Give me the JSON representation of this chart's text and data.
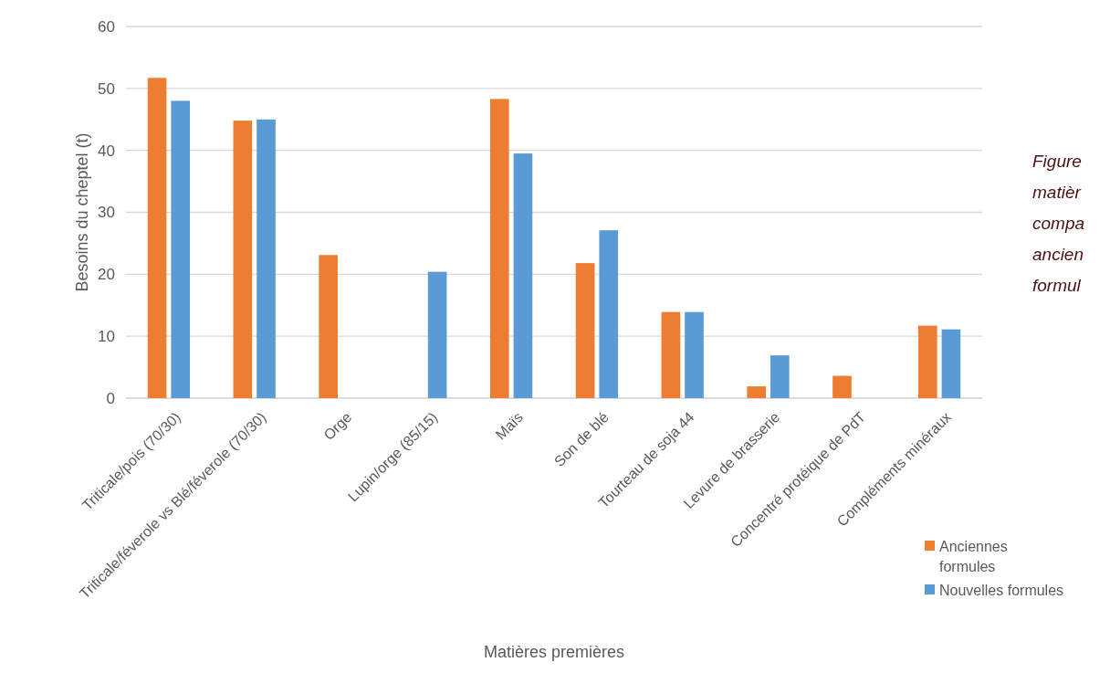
{
  "chart_data": {
    "type": "bar",
    "xlabel": "Matières premières",
    "ylabel": "Besoins du cheptel (t)",
    "categories": [
      "Triticale/pois (70/30)",
      "Triticale/féverole vs Blé/féverole (70/30)",
      "Orge",
      "Lupin/orge (85/15)",
      "Maïs",
      "Son de blé",
      "Tourteau de soja 44",
      "Levure de brasserie",
      "Concentré protéique de PdT",
      "Compléments minéraux"
    ],
    "series": [
      {
        "name": "Anciennes formules",
        "color": "#ed7d31",
        "values": [
          51.7,
          44.8,
          23.1,
          null,
          48.3,
          21.8,
          13.9,
          1.9,
          3.6,
          11.7
        ]
      },
      {
        "name": "Nouvelles formules",
        "color": "#5b9bd5",
        "values": [
          48.0,
          45.0,
          null,
          20.4,
          39.5,
          27.1,
          13.9,
          6.9,
          null,
          11.1
        ]
      }
    ],
    "ylim": [
      0,
      60
    ],
    "yticks": [
      0,
      10,
      20,
      30,
      40,
      50,
      60
    ],
    "grid": "y",
    "legend": "bottom right",
    "annotations": [
      "Figure\nmatièr\ncompa\nancien\nformul"
    ]
  }
}
